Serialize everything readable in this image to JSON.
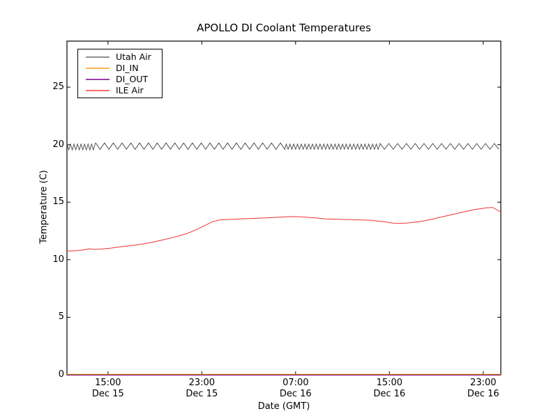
{
  "chart_data": {
    "type": "line",
    "title": "APOLLO DI Coolant Temperatures",
    "xlabel": "Date (GMT)",
    "ylabel": "Temperature (C)",
    "grid": false,
    "legend_position": "upper left",
    "x_units": "hours since Dec 15 00:00 GMT",
    "xlim_hours": [
      11.5,
      48.5
    ],
    "ylim": [
      0,
      29
    ],
    "yticks": [
      0,
      5,
      10,
      15,
      20,
      25
    ],
    "xticks": [
      {
        "hours": 15,
        "time": "15:00",
        "date": "Dec 15"
      },
      {
        "hours": 23,
        "time": "23:00",
        "date": "Dec 15"
      },
      {
        "hours": 31,
        "time": "07:00",
        "date": "Dec 16"
      },
      {
        "hours": 39,
        "time": "15:00",
        "date": "Dec 16"
      },
      {
        "hours": 47,
        "time": "23:00",
        "date": "Dec 16"
      }
    ],
    "series": [
      {
        "name": "Utah Air",
        "color": "#444444",
        "line_width": 0.9,
        "style": "zigzag",
        "approx_mean": 19.9,
        "zigzag_segments": [
          {
            "t_start": 11.5,
            "t_end": 13.95,
            "period_hours": 0.3,
            "high": 20.05,
            "low": 19.55
          },
          {
            "t_start": 13.95,
            "t_end": 30.2,
            "period_hours": 0.75,
            "high": 20.15,
            "low": 19.6
          },
          {
            "t_start": 30.2,
            "t_end": 38.2,
            "period_hours": 0.32,
            "high": 20.05,
            "low": 19.6
          },
          {
            "t_start": 38.2,
            "t_end": 48.5,
            "period_hours": 0.75,
            "high": 20.1,
            "low": 19.6
          }
        ]
      },
      {
        "name": "DI_IN",
        "color": "#ffa500",
        "line_width": 1,
        "style": "points",
        "points": [
          [
            11.5,
            0
          ],
          [
            48.5,
            0
          ]
        ]
      },
      {
        "name": "DI_OUT",
        "color": "#800080",
        "line_width": 1,
        "style": "points",
        "points": [
          [
            11.5,
            0
          ],
          [
            48.5,
            0
          ]
        ]
      },
      {
        "name": "ILE Air",
        "color": "#f03030",
        "line_width": 1,
        "style": "points",
        "points": [
          [
            11.5,
            10.75
          ],
          [
            12.3,
            10.78
          ],
          [
            12.9,
            10.85
          ],
          [
            13.4,
            10.95
          ],
          [
            13.8,
            10.9
          ],
          [
            14.3,
            10.92
          ],
          [
            15.2,
            11.0
          ],
          [
            16.3,
            11.15
          ],
          [
            17.5,
            11.3
          ],
          [
            18.7,
            11.5
          ],
          [
            19.8,
            11.75
          ],
          [
            20.8,
            12.0
          ],
          [
            21.8,
            12.3
          ],
          [
            22.6,
            12.65
          ],
          [
            23.3,
            13.0
          ],
          [
            23.9,
            13.3
          ],
          [
            24.5,
            13.45
          ],
          [
            25.3,
            13.5
          ],
          [
            26.3,
            13.55
          ],
          [
            27.5,
            13.6
          ],
          [
            28.8,
            13.65
          ],
          [
            30.0,
            13.72
          ],
          [
            30.8,
            13.75
          ],
          [
            31.6,
            13.72
          ],
          [
            32.5,
            13.65
          ],
          [
            33.6,
            13.55
          ],
          [
            35.0,
            13.5
          ],
          [
            36.3,
            13.47
          ],
          [
            37.5,
            13.42
          ],
          [
            38.5,
            13.3
          ],
          [
            39.3,
            13.18
          ],
          [
            39.8,
            13.15
          ],
          [
            40.6,
            13.2
          ],
          [
            41.6,
            13.32
          ],
          [
            42.6,
            13.52
          ],
          [
            43.8,
            13.8
          ],
          [
            45.0,
            14.08
          ],
          [
            46.2,
            14.35
          ],
          [
            47.2,
            14.5
          ],
          [
            47.8,
            14.55
          ],
          [
            48.2,
            14.32
          ],
          [
            48.5,
            14.15
          ]
        ]
      }
    ]
  },
  "legend": {
    "items": [
      {
        "label": "Utah Air",
        "swatch_color": "#909090"
      },
      {
        "label": "DI_IN",
        "swatch_color": "#ffb84d"
      },
      {
        "label": "DI_OUT",
        "swatch_color": "#9b3fa8"
      },
      {
        "label": "ILE Air",
        "swatch_color": "#ff6b6b"
      }
    ]
  }
}
